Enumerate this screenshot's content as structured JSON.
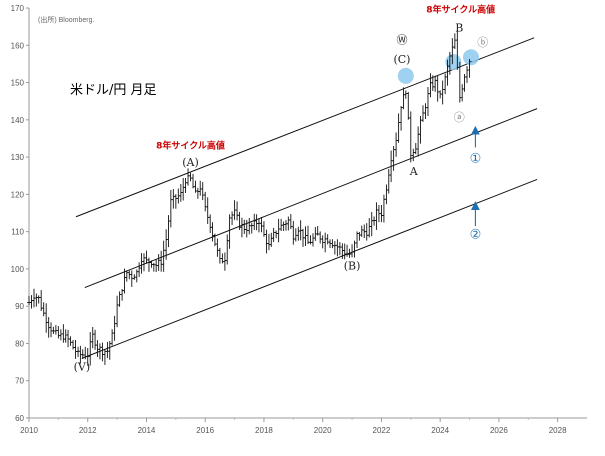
{
  "source_label": "(出所) Bloomberg.",
  "chart_data": {
    "type": "candlestick",
    "title": "米ドル/円 月足",
    "xlabel": "",
    "ylabel": "",
    "xlim": [
      2010,
      2029
    ],
    "ylim": [
      60,
      170
    ],
    "x_ticks": [
      "2010",
      "2012",
      "2014",
      "2016",
      "2018",
      "2020",
      "2022",
      "2024",
      "2026",
      "2028"
    ],
    "y_ticks": [
      "60",
      "70",
      "80",
      "90",
      "100",
      "110",
      "120",
      "130",
      "140",
      "150",
      "160",
      "170"
    ],
    "grid": false,
    "series": [
      {
        "values": [
          {
            "t": 2010.0,
            "y": 91
          },
          {
            "t": 2010.17,
            "y": 93
          },
          {
            "t": 2010.33,
            "y": 92
          },
          {
            "t": 2010.5,
            "y": 88
          },
          {
            "t": 2010.67,
            "y": 85
          },
          {
            "t": 2010.83,
            "y": 83
          },
          {
            "t": 2011.0,
            "y": 82
          },
          {
            "t": 2011.17,
            "y": 82
          },
          {
            "t": 2011.33,
            "y": 81
          },
          {
            "t": 2011.5,
            "y": 79
          },
          {
            "t": 2011.67,
            "y": 77
          },
          {
            "t": 2011.83,
            "y": 77
          },
          {
            "t": 2012.0,
            "y": 77
          },
          {
            "t": 2012.17,
            "y": 82
          },
          {
            "t": 2012.33,
            "y": 79
          },
          {
            "t": 2012.5,
            "y": 78
          },
          {
            "t": 2012.67,
            "y": 78
          },
          {
            "t": 2012.83,
            "y": 82
          },
          {
            "t": 2013.0,
            "y": 90
          },
          {
            "t": 2013.17,
            "y": 95
          },
          {
            "t": 2013.33,
            "y": 99
          },
          {
            "t": 2013.5,
            "y": 98
          },
          {
            "t": 2013.67,
            "y": 99
          },
          {
            "t": 2013.83,
            "y": 103
          },
          {
            "t": 2014.0,
            "y": 102
          },
          {
            "t": 2014.17,
            "y": 102
          },
          {
            "t": 2014.33,
            "y": 101
          },
          {
            "t": 2014.5,
            "y": 102
          },
          {
            "t": 2014.67,
            "y": 108
          },
          {
            "t": 2014.83,
            "y": 118
          },
          {
            "t": 2015.0,
            "y": 119
          },
          {
            "t": 2015.17,
            "y": 120
          },
          {
            "t": 2015.33,
            "y": 124
          },
          {
            "t": 2015.5,
            "y": 124
          },
          {
            "t": 2015.67,
            "y": 120
          },
          {
            "t": 2015.83,
            "y": 122
          },
          {
            "t": 2016.0,
            "y": 116
          },
          {
            "t": 2016.17,
            "y": 112
          },
          {
            "t": 2016.33,
            "y": 107
          },
          {
            "t": 2016.5,
            "y": 102
          },
          {
            "t": 2016.67,
            "y": 103
          },
          {
            "t": 2016.83,
            "y": 114
          },
          {
            "t": 2017.0,
            "y": 115
          },
          {
            "t": 2017.17,
            "y": 112
          },
          {
            "t": 2017.33,
            "y": 111
          },
          {
            "t": 2017.5,
            "y": 111
          },
          {
            "t": 2017.67,
            "y": 112
          },
          {
            "t": 2017.83,
            "y": 113
          },
          {
            "t": 2018.0,
            "y": 109
          },
          {
            "t": 2018.17,
            "y": 106
          },
          {
            "t": 2018.33,
            "y": 109
          },
          {
            "t": 2018.5,
            "y": 111
          },
          {
            "t": 2018.67,
            "y": 112
          },
          {
            "t": 2018.83,
            "y": 113
          },
          {
            "t": 2019.0,
            "y": 109
          },
          {
            "t": 2019.17,
            "y": 111
          },
          {
            "t": 2019.33,
            "y": 109
          },
          {
            "t": 2019.5,
            "y": 107
          },
          {
            "t": 2019.67,
            "y": 108
          },
          {
            "t": 2019.83,
            "y": 109
          },
          {
            "t": 2020.0,
            "y": 108
          },
          {
            "t": 2020.17,
            "y": 108
          },
          {
            "t": 2020.33,
            "y": 107
          },
          {
            "t": 2020.5,
            "y": 106
          },
          {
            "t": 2020.67,
            "y": 105
          },
          {
            "t": 2020.83,
            "y": 104
          },
          {
            "t": 2021.0,
            "y": 104
          },
          {
            "t": 2021.17,
            "y": 109
          },
          {
            "t": 2021.33,
            "y": 110
          },
          {
            "t": 2021.5,
            "y": 110
          },
          {
            "t": 2021.67,
            "y": 112
          },
          {
            "t": 2021.83,
            "y": 115
          },
          {
            "t": 2022.0,
            "y": 115
          },
          {
            "t": 2022.17,
            "y": 122
          },
          {
            "t": 2022.33,
            "y": 130
          },
          {
            "t": 2022.5,
            "y": 135
          },
          {
            "t": 2022.67,
            "y": 144
          },
          {
            "t": 2022.83,
            "y": 148
          },
          {
            "t": 2023.0,
            "y": 131
          },
          {
            "t": 2023.17,
            "y": 133
          },
          {
            "t": 2023.33,
            "y": 139
          },
          {
            "t": 2023.5,
            "y": 144
          },
          {
            "t": 2023.67,
            "y": 149
          },
          {
            "t": 2023.83,
            "y": 150
          },
          {
            "t": 2024.0,
            "y": 146
          },
          {
            "t": 2024.17,
            "y": 151
          },
          {
            "t": 2024.33,
            "y": 157
          },
          {
            "t": 2024.5,
            "y": 161
          },
          {
            "t": 2024.67,
            "y": 146
          },
          {
            "t": 2024.83,
            "y": 152
          },
          {
            "t": 2025.0,
            "y": 156
          }
        ]
      }
    ],
    "channel_lines": [
      {
        "from": {
          "x": 2011.6,
          "y": 114
        },
        "to": {
          "x": 2027.2,
          "y": 162
        }
      },
      {
        "from": {
          "x": 2011.9,
          "y": 95
        },
        "to": {
          "x": 2027.3,
          "y": 143
        }
      },
      {
        "from": {
          "x": 2011.8,
          "y": 76
        },
        "to": {
          "x": 2027.3,
          "y": 124
        }
      }
    ],
    "highlights": [
      {
        "x": 2022.83,
        "y": 151.8
      },
      {
        "x": 2024.45,
        "y": 155.5
      },
      {
        "x": 2025.05,
        "y": 156.8
      }
    ],
    "annotations": [
      {
        "text": "(Ⅴ)",
        "x": 2011.8,
        "y": 72.8,
        "style": "wave"
      },
      {
        "text": "(A)",
        "x": 2015.5,
        "y": 127.6,
        "style": "wave"
      },
      {
        "text": "8年サイクル高値",
        "x": 2015.5,
        "y": 132.3,
        "style": "red"
      },
      {
        "text": "(B)",
        "x": 2021.0,
        "y": 99.9,
        "style": "wave"
      },
      {
        "text": "(C)",
        "x": 2022.7,
        "y": 155.2,
        "style": "wave"
      },
      {
        "text": "Ⓦ",
        "x": 2022.7,
        "y": 160.5,
        "style": "wave"
      },
      {
        "text": "A",
        "x": 2023.1,
        "y": 125.2,
        "style": "wave"
      },
      {
        "text": "B",
        "x": 2024.65,
        "y": 163.7,
        "style": "wave"
      },
      {
        "text": "8年サイクル高値",
        "x": 2024.7,
        "y": 168.8,
        "style": "red"
      },
      {
        "text": "ⓐ",
        "x": 2024.65,
        "y": 139.7,
        "style": "wave-grey"
      },
      {
        "text": "ⓑ",
        "x": 2025.45,
        "y": 159.8,
        "style": "wave-grey"
      },
      {
        "text": "①",
        "x": 2025.2,
        "y": 128.5,
        "style": "blue"
      },
      {
        "text": "②",
        "x": 2025.2,
        "y": 108.2,
        "style": "blue"
      }
    ],
    "arrows": [
      {
        "from": {
          "x": 2025.2,
          "y": 132.6
        },
        "to": {
          "x": 2025.2,
          "y": 137.2
        }
      },
      {
        "from": {
          "x": 2025.2,
          "y": 111.5
        },
        "to": {
          "x": 2025.2,
          "y": 117.0
        }
      }
    ]
  }
}
